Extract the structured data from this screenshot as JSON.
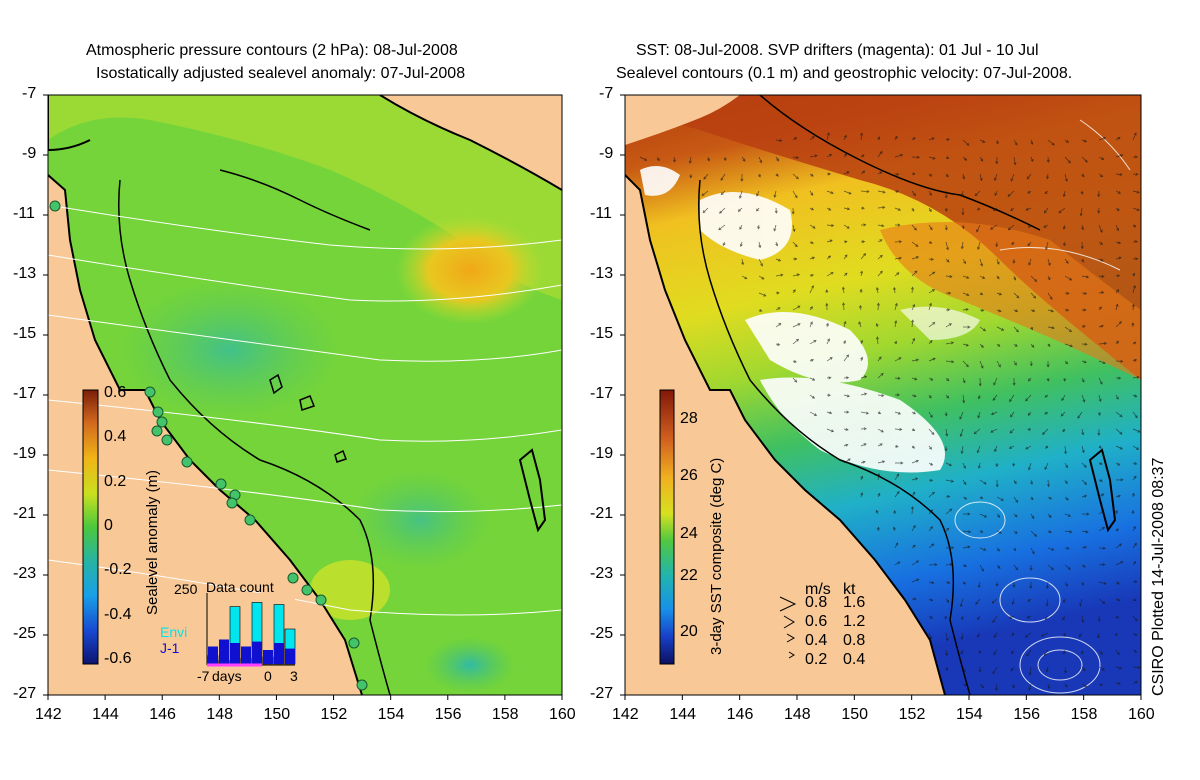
{
  "left_panel": {
    "title_line1": "Atmospheric pressure contours (2 hPa): 08-Jul-2008",
    "title_line2": "Isostatically adjusted sealevel anomaly: 07-Jul-2008",
    "colorbar_label": "Sealevel anomaly (m)",
    "colorbar_ticks": [
      "0.6",
      "0.4",
      "0.2",
      "0",
      "-0.2",
      "-0.4",
      "-0.6"
    ],
    "inset": {
      "title": "Data count",
      "y_tick": "250",
      "legend": [
        {
          "label": "Envi",
          "color": "#00e5ee"
        },
        {
          "label": "J-1",
          "color": "#1010d0"
        }
      ],
      "x_ticks": [
        "-7",
        "days",
        "0",
        "3"
      ],
      "bars_envi": [
        0.12,
        0.05,
        0.82,
        0.08,
        0.88,
        0.1,
        0.85,
        0.5
      ],
      "bars_j1": [
        0.25,
        0.35,
        0.3,
        0.25,
        0.32,
        0.2,
        0.3,
        0.22
      ]
    }
  },
  "right_panel": {
    "title_line1": "SST: 08-Jul-2008. SVP drifters (magenta): 01 Jul - 10 Jul",
    "title_line2": "Sealevel contours (0.1 m) and geostrophic velocity: 07-Jul-2008.",
    "colorbar_label": "3-day SST composite (deg C)",
    "colorbar_ticks": [
      "28",
      "26",
      "24",
      "22",
      "20"
    ],
    "velocity_legend": {
      "header_ms": "m/s",
      "header_kt": "kt",
      "rows": [
        {
          "ms": "0.8",
          "kt": "1.6"
        },
        {
          "ms": "0.6",
          "kt": "1.2"
        },
        {
          "ms": "0.4",
          "kt": "0.8"
        },
        {
          "ms": "0.2",
          "kt": "0.4"
        }
      ]
    }
  },
  "axes": {
    "lat_ticks": [
      "-7",
      "-9",
      "-11",
      "-13",
      "-15",
      "-17",
      "-19",
      "-21",
      "-23",
      "-25",
      "-27"
    ],
    "lon_ticks": [
      "142",
      "144",
      "146",
      "148",
      "150",
      "152",
      "154",
      "156",
      "158",
      "160"
    ]
  },
  "credit": "CSIRO Plotted 14-Jul-2008 08:37",
  "colors": {
    "land": "#f8c896",
    "sla_ocean": "#74d43a",
    "sla_high": "#f2b21a",
    "sla_low": "#30b890",
    "sst_warm": "#b84010",
    "sst_mid": "#e8d818",
    "sst_cool": "#2050d0",
    "cloud": "#ffffff",
    "contour": "#ffffff",
    "coast": "#000000"
  }
}
